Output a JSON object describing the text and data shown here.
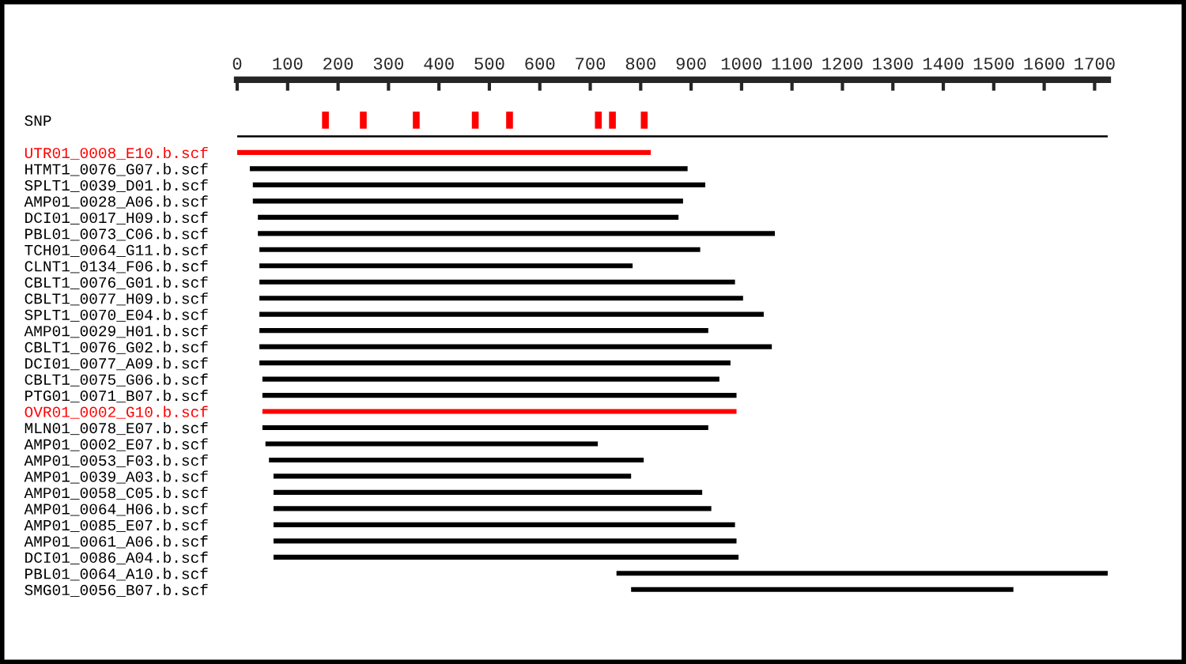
{
  "chart_data": {
    "type": "bar",
    "orientation": "horizontal",
    "categories": [
      "SNP",
      null,
      "UTR01_0008_E10.b.scf",
      "HTMT1_0076_G07.b.scf",
      "SPLT1_0039_D01.b.scf",
      "AMP01_0028_A06.b.scf",
      "DCI01_0017_H09.b.scf",
      "PBL01_0073_C06.b.scf",
      "TCH01_0064_G11.b.scf",
      "CLNT1_0134_F06.b.scf",
      "CBLT1_0076_G01.b.scf",
      "CBLT1_0077_H09.b.scf",
      "SPLT1_0070_E04.b.scf",
      "AMP01_0029_H01.b.scf",
      "CBLT1_0076_G02.b.scf",
      "DCI01_0077_A09.b.scf",
      "CBLT1_0075_G06.b.scf",
      "PTG01_0071_B07.b.scf",
      "OVR01_0002_G10.b.scf",
      "MLN01_0078_E07.b.scf",
      "AMP01_0002_E07.b.scf",
      "AMP01_0053_F03.b.scf",
      "AMP01_0039_A03.b.scf",
      "AMP01_0058_C05.b.scf",
      "AMP01_0064_H06.b.scf",
      "AMP01_0085_E07.b.scf",
      "AMP01_0061_A06.b.scf",
      "DCI01_0086_A04.b.scf",
      "PBL01_0064_A10.b.scf",
      "SMG01_0056_B07.b.scf"
    ],
    "series": [
      {
        "base": [
          null,
          0,
          0,
          25,
          31,
          31,
          41,
          41,
          44,
          44,
          44,
          44,
          44,
          44,
          44,
          44,
          50,
          50,
          50,
          50,
          56,
          63,
          72,
          72,
          72,
          72,
          72,
          72,
          752,
          781
        ],
        "values": [
          null,
          1726,
          820,
          868,
          897,
          853,
          834,
          1025,
          874,
          740,
          943,
          959,
          1000,
          890,
          1016,
          934,
          906,
          940,
          940,
          884,
          659,
          743,
          709,
          850,
          868,
          915,
          918,
          922,
          974,
          758
        ],
        "colors": [
          "#000000",
          "#000000",
          "#ff0000",
          "#000000",
          "#000000",
          "#000000",
          "#000000",
          "#000000",
          "#000000",
          "#000000",
          "#000000",
          "#000000",
          "#000000",
          "#000000",
          "#000000",
          "#000000",
          "#000000",
          "#000000",
          "#ff0000",
          "#000000",
          "#000000",
          "#000000",
          "#000000",
          "#000000",
          "#000000",
          "#000000",
          "#000000",
          "#000000",
          "#000000",
          "#000000"
        ]
      },
      {
        "type": "scatter",
        "color": "#ff0000",
        "values": [
          175,
          null,
          null,
          null,
          null,
          null,
          null,
          null,
          null,
          null,
          null,
          null,
          null,
          null,
          null,
          null,
          null,
          null,
          null,
          null,
          null,
          null,
          null,
          null,
          null,
          null,
          null,
          null,
          null,
          null
        ]
      },
      {
        "type": "scatter",
        "color": "#ff0000",
        "values": [
          250,
          null,
          null,
          null,
          null,
          null,
          null,
          null,
          null,
          null,
          null,
          null,
          null,
          null,
          null,
          null,
          null,
          null,
          null,
          null,
          null,
          null,
          null,
          null,
          null,
          null,
          null,
          null,
          null,
          null
        ]
      },
      {
        "type": "scatter",
        "color": "#ff0000",
        "values": [
          355,
          null,
          null,
          null,
          null,
          null,
          null,
          null,
          null,
          null,
          null,
          null,
          null,
          null,
          null,
          null,
          null,
          null,
          null,
          null,
          null,
          null,
          null,
          null,
          null,
          null,
          null,
          null,
          null,
          null
        ]
      },
      {
        "type": "scatter",
        "color": "#ff0000",
        "values": [
          472,
          null,
          null,
          null,
          null,
          null,
          null,
          null,
          null,
          null,
          null,
          null,
          null,
          null,
          null,
          null,
          null,
          null,
          null,
          null,
          null,
          null,
          null,
          null,
          null,
          null,
          null,
          null,
          null,
          null
        ]
      },
      {
        "type": "scatter",
        "color": "#ff0000",
        "values": [
          540,
          null,
          null,
          null,
          null,
          null,
          null,
          null,
          null,
          null,
          null,
          null,
          null,
          null,
          null,
          null,
          null,
          null,
          null,
          null,
          null,
          null,
          null,
          null,
          null,
          null,
          null,
          null,
          null,
          null
        ]
      },
      {
        "type": "scatter",
        "color": "#ff0000",
        "values": [
          716,
          null,
          null,
          null,
          null,
          null,
          null,
          null,
          null,
          null,
          null,
          null,
          null,
          null,
          null,
          null,
          null,
          null,
          null,
          null,
          null,
          null,
          null,
          null,
          null,
          null,
          null,
          null,
          null,
          null
        ]
      },
      {
        "type": "scatter",
        "color": "#ff0000",
        "values": [
          744,
          null,
          null,
          null,
          null,
          null,
          null,
          null,
          null,
          null,
          null,
          null,
          null,
          null,
          null,
          null,
          null,
          null,
          null,
          null,
          null,
          null,
          null,
          null,
          null,
          null,
          null,
          null,
          null,
          null
        ]
      },
      {
        "type": "scatter",
        "color": "#ff0000",
        "values": [
          807,
          null,
          null,
          null,
          null,
          null,
          null,
          null,
          null,
          null,
          null,
          null,
          null,
          null,
          null,
          null,
          null,
          null,
          null,
          null,
          null,
          null,
          null,
          null,
          null,
          null,
          null,
          null,
          null,
          null
        ]
      }
    ],
    "xlim": [
      0,
      1726
    ],
    "xticks": [
      0,
      100,
      200,
      300,
      400,
      500,
      600,
      700,
      800,
      900,
      1000,
      1100,
      1200,
      1300,
      1400,
      1500,
      1600,
      1700
    ],
    "grid": false,
    "legend": false
  }
}
